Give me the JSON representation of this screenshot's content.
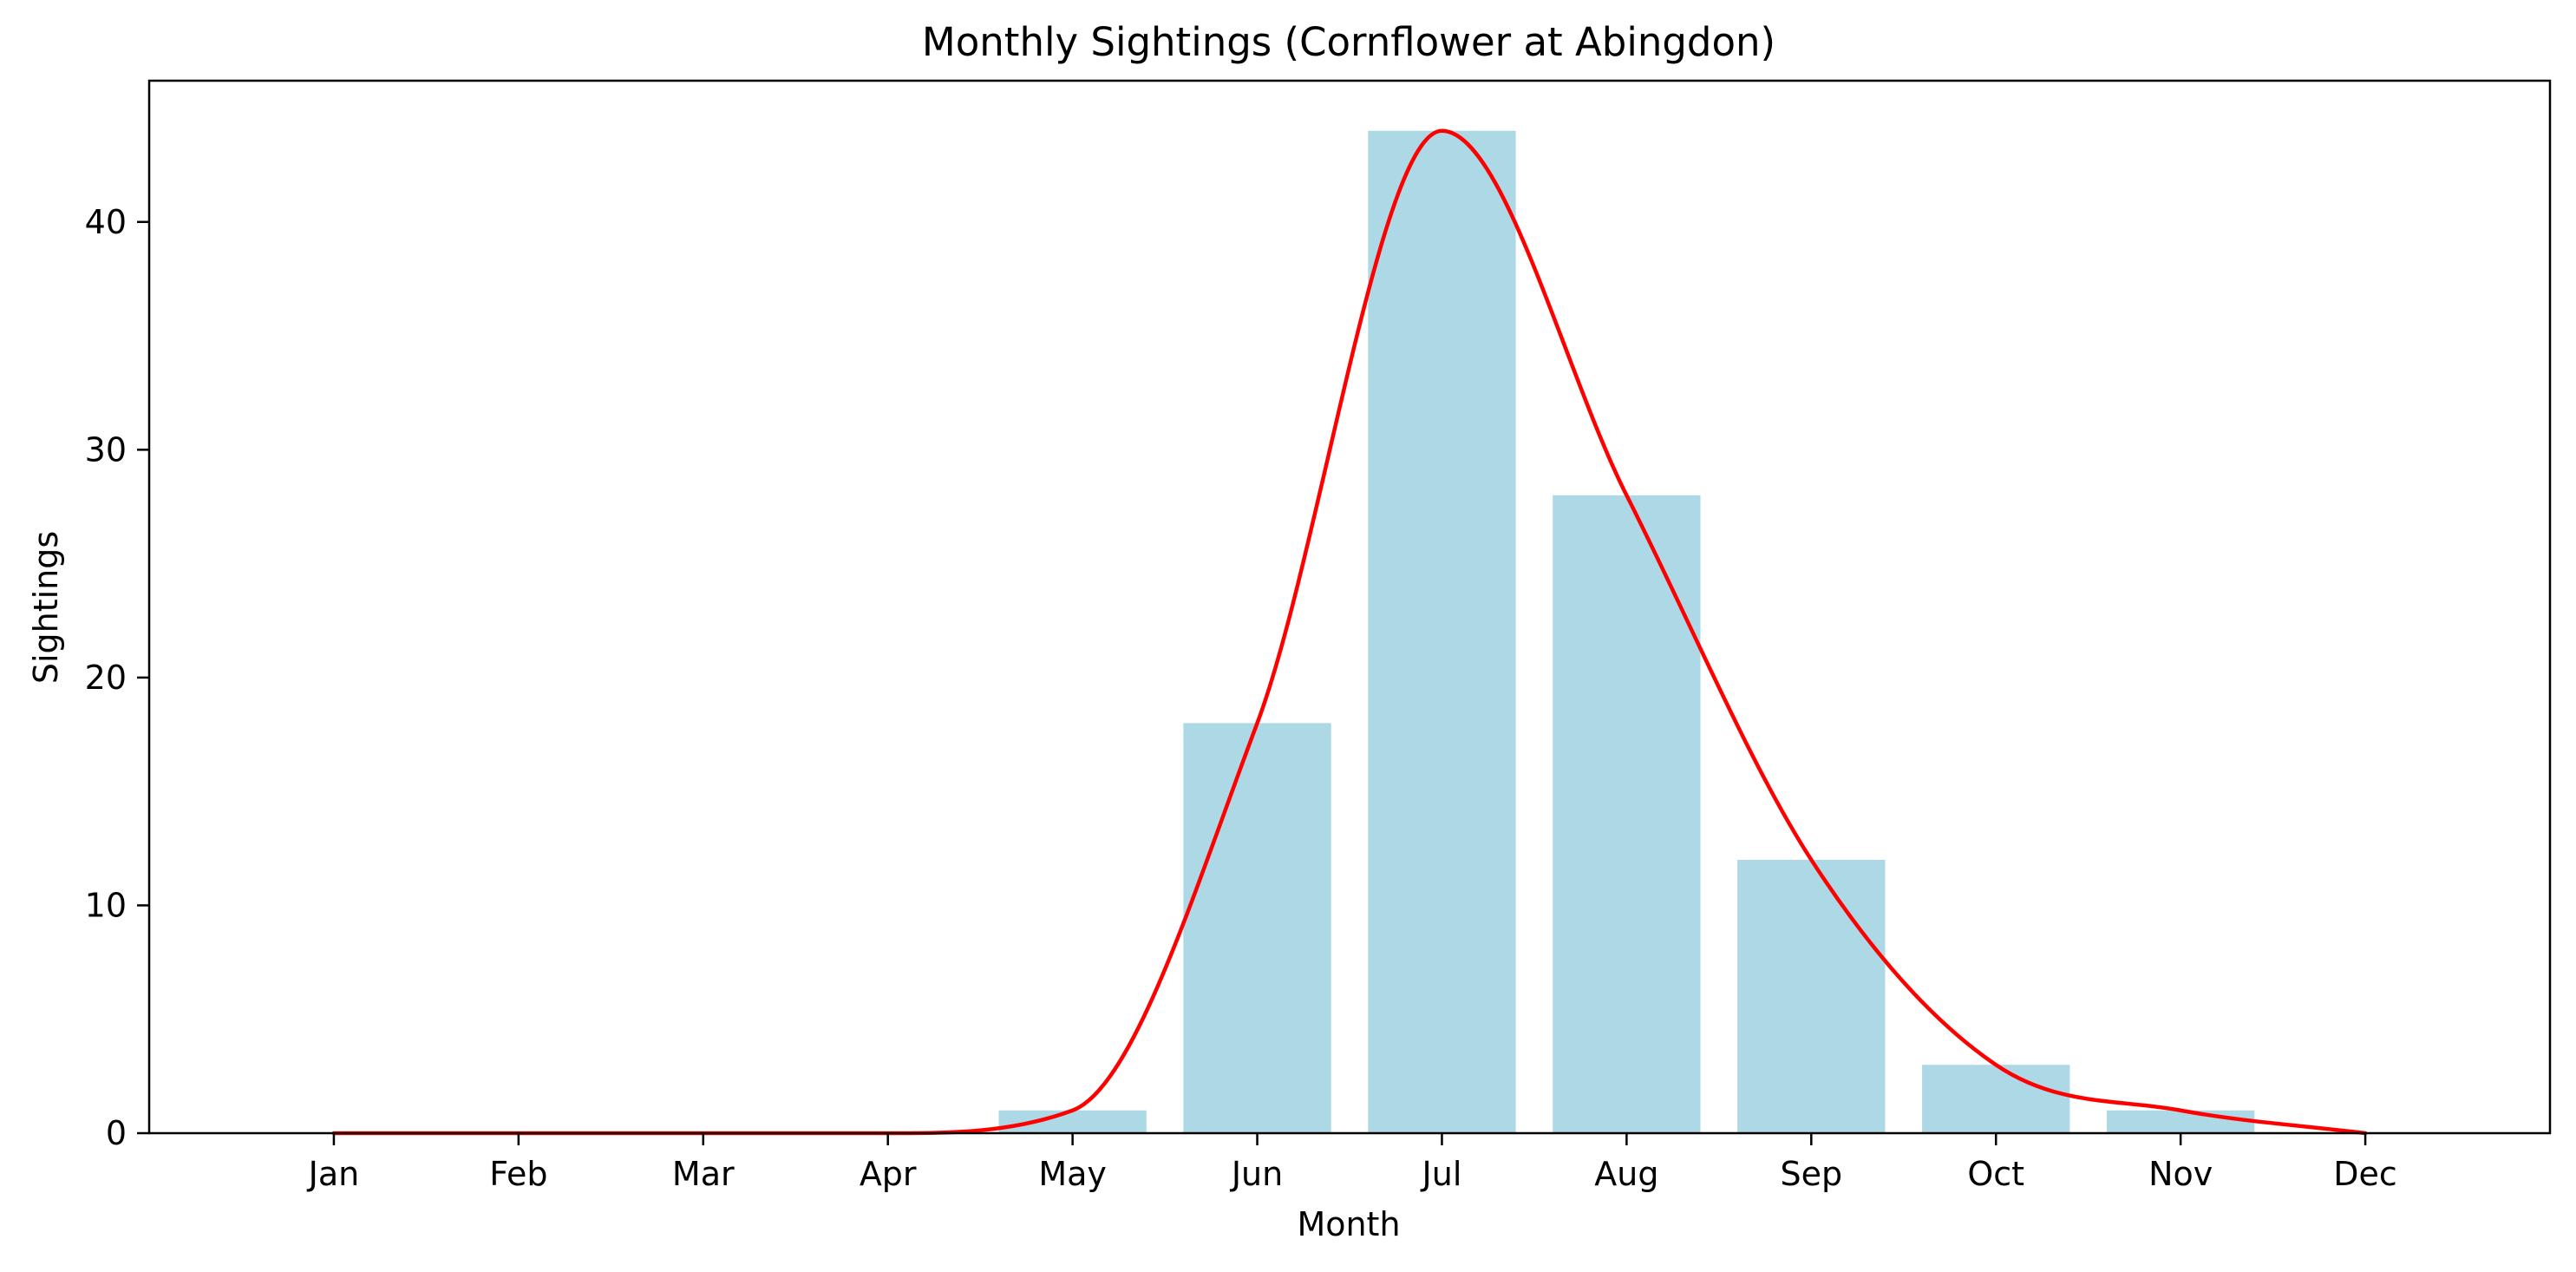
{
  "chart_data": {
    "type": "bar",
    "title": "Monthly Sightings (Cornflower at Abingdon)",
    "xlabel": "Month",
    "ylabel": "Sightings",
    "categories": [
      "Jan",
      "Feb",
      "Mar",
      "Apr",
      "May",
      "Jun",
      "Jul",
      "Aug",
      "Sep",
      "Oct",
      "Nov",
      "Dec"
    ],
    "series": [
      {
        "type": "bar",
        "values": [
          0,
          0,
          0,
          0,
          1,
          18,
          44,
          28,
          12,
          3,
          1,
          0
        ],
        "color": "#add8e6"
      },
      {
        "type": "line",
        "smooth": true,
        "values": [
          0,
          0,
          0,
          0,
          1,
          18,
          44,
          28,
          12,
          3,
          1,
          0
        ],
        "color": "#ff0000"
      }
    ],
    "xlim": [
      -1,
      12
    ],
    "ylim": [
      0,
      46.2
    ],
    "yticks": [
      0,
      10,
      20,
      30,
      40
    ],
    "grid": false,
    "legend": "none"
  }
}
